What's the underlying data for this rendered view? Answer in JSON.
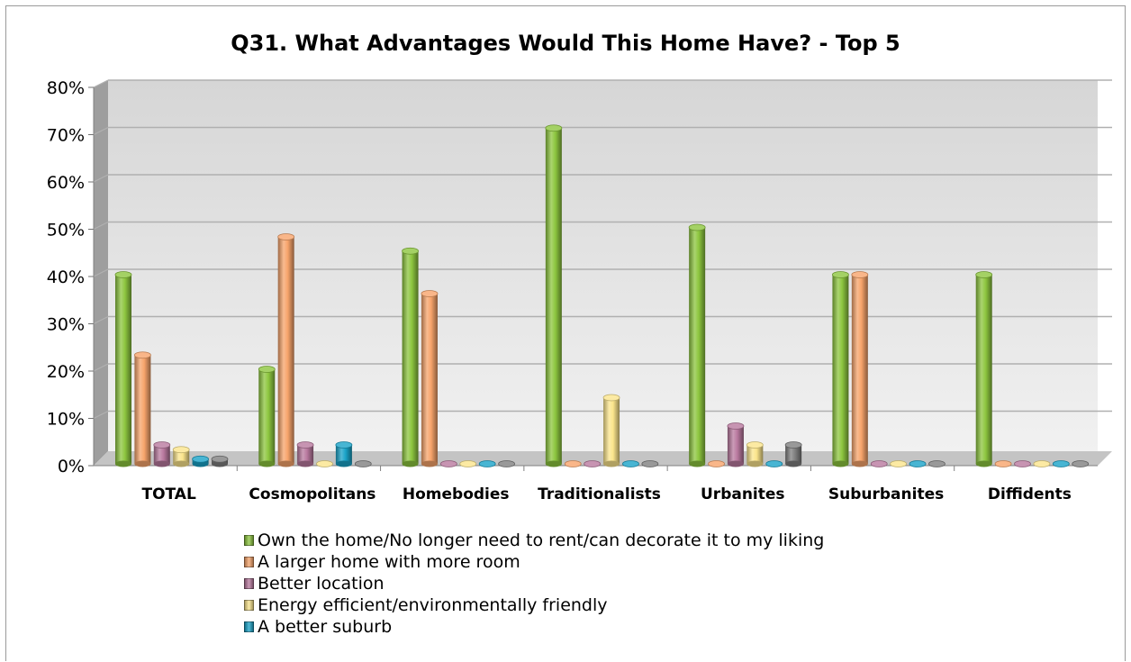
{
  "chart_data": {
    "type": "bar",
    "title": "Q31. What Advantages Would This Home Have? - Top 5",
    "categories": [
      "TOTAL",
      "Cosmopolitans",
      "Homebodies",
      "Traditionalists",
      "Urbanites",
      "Suburbanites",
      "Diffidents"
    ],
    "ylim": [
      0,
      80
    ],
    "y_ticks": [
      "0%",
      "10%",
      "20%",
      "30%",
      "40%",
      "50%",
      "60%",
      "70%",
      "80%"
    ],
    "grid": true,
    "legend_position": "bottom",
    "series": [
      {
        "name": "Own the home/No longer need to rent/can decorate it to my liking",
        "color": "#8dc63f",
        "values": [
          40,
          20,
          45,
          71,
          50,
          40,
          40
        ]
      },
      {
        "name": "A larger home with more room",
        "color": "#f7a46b",
        "values": [
          23,
          48,
          36,
          0,
          0,
          40,
          0
        ]
      },
      {
        "name": "Better location",
        "color": "#b9799f",
        "values": [
          4,
          4,
          0,
          0,
          8,
          0,
          0
        ]
      },
      {
        "name": "Energy efficient/environmentally friendly",
        "color": "#fbe58c",
        "values": [
          3,
          0,
          0,
          14,
          4,
          0,
          0
        ]
      },
      {
        "name": "A better suburb",
        "color": "#1aa3c8",
        "values": [
          1,
          4,
          0,
          0,
          0,
          0,
          0
        ]
      },
      {
        "name": "",
        "color": "#7f7f7f",
        "values": [
          1,
          0,
          0,
          0,
          4,
          0,
          0
        ]
      }
    ]
  }
}
